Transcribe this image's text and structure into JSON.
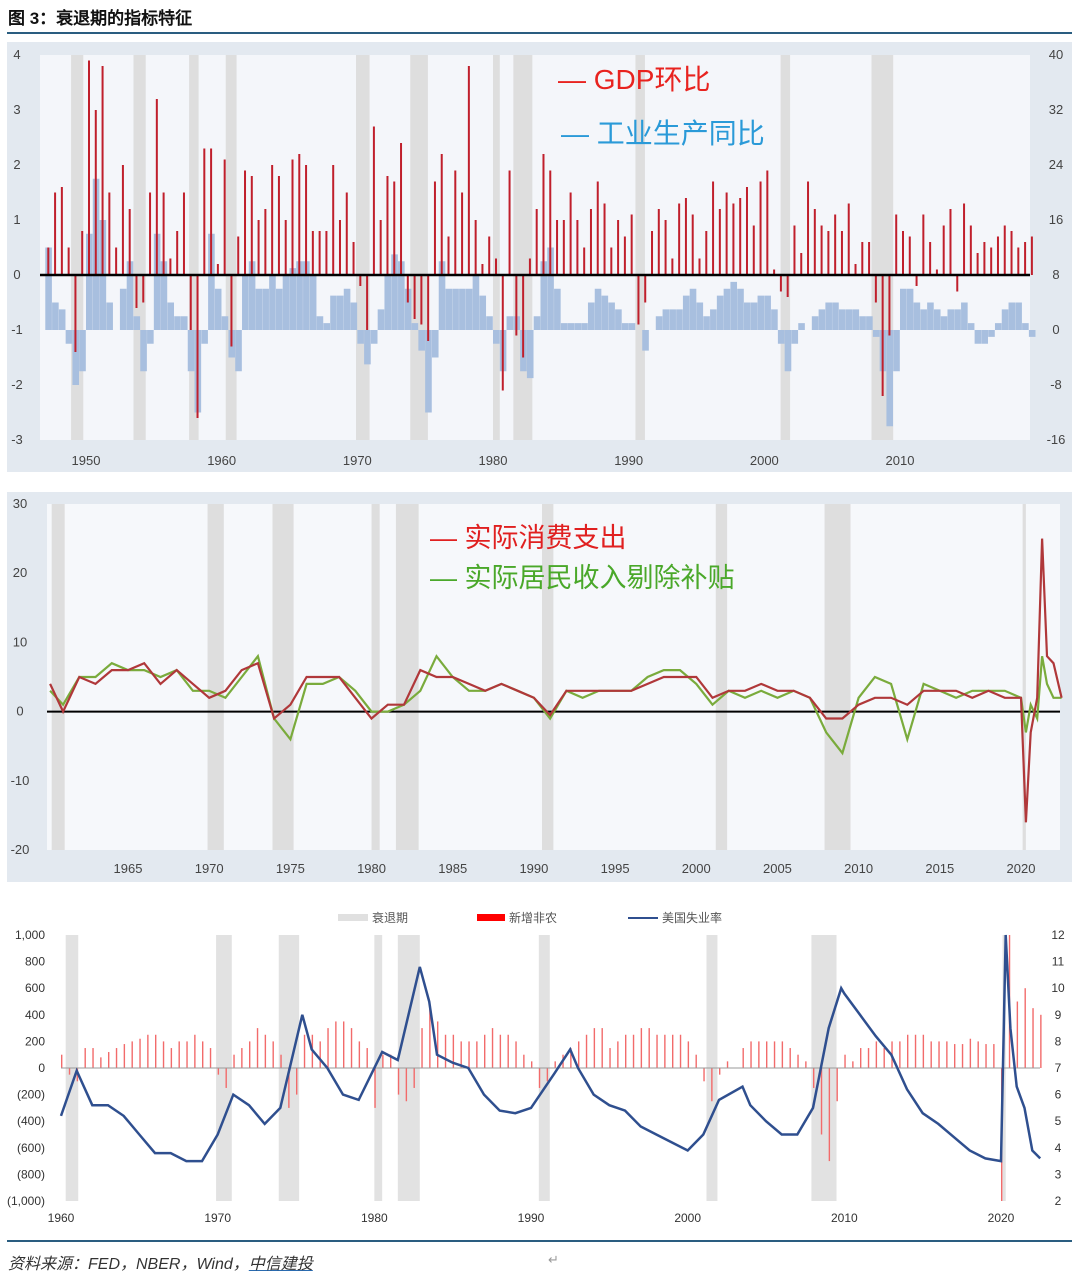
{
  "title": "图 3：衰退期的指标特征",
  "source": {
    "prefix": "资料来源：FED，NBER，Wind，",
    "suffix": "中信建投"
  },
  "recessions": [
    [
      1948.9,
      1949.8
    ],
    [
      1953.5,
      1954.4
    ],
    [
      1957.6,
      1958.3
    ],
    [
      1960.3,
      1961.1
    ],
    [
      1969.9,
      1970.9
    ],
    [
      1973.9,
      1975.2
    ],
    [
      1980.0,
      1980.5
    ],
    [
      1981.5,
      1982.9
    ],
    [
      1990.5,
      1991.2
    ],
    [
      2001.2,
      2001.9
    ],
    [
      2007.9,
      2009.5
    ],
    [
      2020.1,
      2020.3
    ]
  ],
  "chart_data": [
    {
      "type": "bar",
      "title": "",
      "legend": [
        "— GDP环比",
        "— 工业生产同比"
      ],
      "legend_colors": [
        "#e8231f",
        "#2a9ad8"
      ],
      "x_ticks": [
        "1950",
        "1960",
        "1970",
        "1980",
        "1990",
        "2000",
        "2010"
      ],
      "ylim_left": [
        -3,
        4
      ],
      "yticks_left": [
        "4",
        "3",
        "2",
        "1",
        "0",
        "-1",
        "-2",
        "-3"
      ],
      "ylim_right": [
        -16,
        40
      ],
      "yticks_right": [
        "40",
        "32",
        "24",
        "16",
        "8",
        "0",
        "-8",
        "-16"
      ],
      "x_start": 1947,
      "x_step": 0.5,
      "series": [
        {
          "name": "GDP环比",
          "axis": "left",
          "color": "#c01f2c",
          "values": [
            0.5,
            1.5,
            1.6,
            0.5,
            -1.4,
            0.8,
            3.9,
            3.0,
            3.8,
            1.5,
            0.5,
            2.0,
            1.2,
            -0.6,
            -0.5,
            1.5,
            3.2,
            1.5,
            0.3,
            0.8,
            1.5,
            -1.0,
            -2.6,
            2.3,
            2.3,
            0.2,
            2.1,
            -1.3,
            0.7,
            1.9,
            1.8,
            1.0,
            1.2,
            2.0,
            1.8,
            1.0,
            2.1,
            2.2,
            2.0,
            0.8,
            0.8,
            0.8,
            2.0,
            1.0,
            1.5,
            0.6,
            -0.2,
            -1.0,
            2.7,
            1.0,
            1.8,
            1.7,
            2.4,
            -0.5,
            -0.8,
            -0.9,
            -1.2,
            1.7,
            2.2,
            0.7,
            1.9,
            1.5,
            3.8,
            1.0,
            0.2,
            0.7,
            0.3,
            -2.1,
            1.9,
            -1.1,
            -1.5,
            0.3,
            1.2,
            2.2,
            1.9,
            1.0,
            1.0,
            1.5,
            1.0,
            0.5,
            1.2,
            1.7,
            1.3,
            0.5,
            1.0,
            0.7,
            1.1,
            -0.9,
            -0.5,
            0.8,
            1.2,
            1.0,
            0.3,
            1.3,
            1.4,
            1.1,
            0.3,
            0.8,
            1.7,
            1.2,
            1.5,
            1.3,
            1.4,
            1.6,
            0.9,
            1.7,
            1.9,
            0.1,
            -0.3,
            -0.4,
            0.9,
            0.4,
            1.7,
            1.2,
            0.9,
            0.8,
            1.1,
            0.8,
            1.3,
            0.2,
            0.6,
            0.6,
            -0.5,
            -2.2,
            -1.1,
            1.1,
            0.8,
            0.7,
            -0.2,
            1.1,
            0.6,
            0.1,
            0.9,
            1.2,
            -0.3,
            1.3,
            0.9,
            0.4,
            0.6,
            0.5,
            0.7,
            0.9,
            0.8,
            0.5,
            0.6,
            0.7
          ]
        },
        {
          "name": "工业生产同比",
          "axis": "right",
          "color": "#a8bfdf",
          "values": [
            12,
            4,
            3,
            -2,
            -8,
            -6,
            14,
            22,
            16,
            4,
            0,
            6,
            10,
            2,
            -6,
            -2,
            14,
            10,
            4,
            2,
            2,
            -6,
            -12,
            -2,
            14,
            6,
            2,
            -4,
            -6,
            8,
            10,
            6,
            6,
            8,
            6,
            8,
            9,
            10,
            10,
            8,
            2,
            1,
            5,
            5,
            6,
            4,
            -2,
            -5,
            -2,
            3,
            8,
            11,
            10,
            6,
            1,
            -3,
            -12,
            -4,
            10,
            6,
            6,
            6,
            6,
            8,
            5,
            2,
            -2,
            -6,
            2,
            2,
            -6,
            -7,
            2,
            10,
            12,
            6,
            1,
            1,
            1,
            1,
            4,
            6,
            5,
            4,
            3,
            1,
            1,
            0,
            -3,
            0,
            2,
            3,
            3,
            3,
            5,
            6,
            4,
            2,
            3,
            5,
            6,
            7,
            6,
            4,
            4,
            5,
            5,
            3,
            -2,
            -6,
            -2,
            1,
            0,
            2,
            3,
            4,
            4,
            3,
            3,
            3,
            2,
            2,
            -1,
            -6,
            -14,
            -6,
            6,
            6,
            4,
            3,
            4,
            3,
            2,
            3,
            3,
            4,
            1,
            -2,
            -2,
            -1,
            1,
            3,
            4,
            4,
            1,
            -1
          ]
        }
      ]
    },
    {
      "type": "line",
      "legend": [
        "— 实际消费支出",
        "— 实际居民收入剔除补贴"
      ],
      "legend_colors": [
        "#e02020",
        "#4aa82a"
      ],
      "x_ticks": [
        "1965",
        "1970",
        "1975",
        "1980",
        "1985",
        "1990",
        "1995",
        "2000",
        "2005",
        "2010",
        "2015",
        "2020"
      ],
      "ylim": [
        -20,
        30
      ],
      "yticks": [
        "30",
        "20",
        "10",
        "0",
        "-10",
        "-20"
      ],
      "series": [
        {
          "name": "实际消费支出",
          "color": "#b0383a",
          "x": [
            1960.2,
            1961,
            1962,
            1963,
            1964,
            1965,
            1966,
            1967,
            1968,
            1969,
            1970,
            1971,
            1972,
            1973,
            1974,
            1975,
            1976,
            1977,
            1978,
            1979,
            1980,
            1981,
            1982,
            1983,
            1984,
            1985,
            1986,
            1987,
            1988,
            1989,
            1990,
            1991,
            1992,
            1993,
            1994,
            1995,
            1996,
            1997,
            1998,
            1999,
            2000,
            2001,
            2002,
            2003,
            2004,
            2005,
            2006,
            2007,
            2008,
            2009,
            2010,
            2011,
            2012,
            2013,
            2014,
            2015,
            2016,
            2017,
            2018,
            2019,
            2020,
            2020.3,
            2020.6,
            2021,
            2021.3,
            2021.6,
            2022,
            2022.5
          ],
          "y": [
            4,
            0,
            5,
            4,
            6,
            6,
            7,
            4,
            6,
            4,
            2,
            3,
            6,
            7,
            -1,
            1,
            5,
            5,
            5,
            2,
            -1,
            1,
            1,
            6,
            5,
            5,
            4,
            3,
            4,
            3,
            2,
            -0.5,
            3,
            3,
            3,
            3,
            3,
            4,
            5,
            5,
            5,
            2,
            3,
            3,
            4,
            3,
            3,
            2,
            -1,
            -1,
            1,
            2,
            2,
            1,
            3,
            3,
            3,
            2,
            3,
            2,
            2,
            -16,
            -3,
            2,
            25,
            8,
            7,
            2
          ]
        },
        {
          "name": "实际居民收入剔除补贴",
          "color": "#7aab3c",
          "x": [
            1960.2,
            1961,
            1962,
            1963,
            1964,
            1965,
            1966,
            1967,
            1968,
            1969,
            1970,
            1971,
            1972,
            1973,
            1974,
            1975,
            1976,
            1977,
            1978,
            1979,
            1980,
            1981,
            1982,
            1983,
            1984,
            1985,
            1986,
            1987,
            1988,
            1989,
            1990,
            1991,
            1992,
            1993,
            1994,
            1995,
            1996,
            1997,
            1998,
            1999,
            2000,
            2001,
            2002,
            2003,
            2004,
            2005,
            2006,
            2007,
            2008,
            2009,
            2010,
            2011,
            2012,
            2013,
            2014,
            2015,
            2016,
            2017,
            2018,
            2019,
            2020,
            2020.3,
            2020.6,
            2021,
            2021.3,
            2021.6,
            2022,
            2022.5
          ],
          "y": [
            3,
            1,
            5,
            5,
            7,
            6,
            6,
            5,
            6,
            3,
            3,
            2,
            5,
            8,
            -1,
            -4,
            4,
            4,
            5,
            3,
            0,
            0,
            1,
            3,
            8,
            5,
            3,
            3,
            4,
            3,
            2,
            -1,
            3,
            2,
            3,
            3,
            3,
            5,
            6,
            6,
            4,
            1,
            3,
            2,
            3,
            2,
            3,
            2,
            -3,
            -6,
            2,
            5,
            4,
            -4,
            4,
            3,
            2,
            3,
            3,
            3,
            2,
            -3,
            1,
            -1,
            8,
            4,
            2,
            2
          ]
        }
      ]
    },
    {
      "type": "bar+line",
      "legend": [
        "衰退期",
        "新增非农",
        "美国失业率"
      ],
      "legend_colors": [
        "#e0e0e0",
        "#ff0000",
        "#2f4f8f"
      ],
      "x_ticks": [
        "1960",
        "1970",
        "1980",
        "1990",
        "2000",
        "2010",
        "2020"
      ],
      "ylim_left": [
        -1000,
        1000
      ],
      "yticks_left": [
        "1,000",
        "800",
        "600",
        "400",
        "200",
        "0",
        "(200)",
        "(400)",
        "(600)",
        "(800)",
        "(1,000)"
      ],
      "ylim_right": [
        2,
        12
      ],
      "yticks_right": [
        "12",
        "11",
        "10",
        "9",
        "8",
        "7",
        "6",
        "5",
        "4",
        "3",
        "2"
      ],
      "payrolls": {
        "x_start": 1960,
        "x_step": 0.5,
        "values": [
          100,
          -50,
          -100,
          150,
          150,
          80,
          120,
          150,
          180,
          200,
          220,
          250,
          250,
          200,
          150,
          200,
          200,
          250,
          200,
          150,
          -50,
          -150,
          100,
          150,
          200,
          300,
          250,
          200,
          100,
          -300,
          -200,
          250,
          250,
          200,
          300,
          350,
          350,
          300,
          200,
          150,
          -300,
          100,
          100,
          -200,
          -250,
          -150,
          300,
          450,
          350,
          250,
          250,
          200,
          200,
          200,
          250,
          300,
          250,
          250,
          200,
          100,
          50,
          -150,
          -100,
          50,
          100,
          150,
          200,
          250,
          300,
          300,
          150,
          200,
          250,
          250,
          300,
          300,
          250,
          250,
          250,
          250,
          200,
          100,
          -100,
          -250,
          -50,
          50,
          0,
          150,
          200,
          200,
          200,
          200,
          200,
          150,
          100,
          50,
          -150,
          -500,
          -700,
          -250,
          100,
          50,
          150,
          150,
          200,
          150,
          200,
          200,
          250,
          250,
          250,
          200,
          200,
          200,
          180,
          180,
          220,
          200,
          180,
          180,
          -1000,
          1000,
          500,
          600,
          450,
          400
        ]
      },
      "unemployment": {
        "x": [
          1960,
          1961,
          1962,
          1963,
          1964,
          1965,
          1966,
          1967,
          1968,
          1969,
          1970,
          1971,
          1972,
          1973,
          1974,
          1975.4,
          1976,
          1977,
          1978,
          1979,
          1980.5,
          1981.5,
          1982.9,
          1983.5,
          1984,
          1985,
          1986,
          1987,
          1988,
          1989,
          1990,
          1991.5,
          1992.5,
          1993,
          1994,
          1995,
          1996,
          1997,
          1998,
          1999,
          2000,
          2001,
          2002,
          2003.5,
          2004,
          2005,
          2006,
          2007,
          2008,
          2009,
          2009.8,
          2010,
          2011,
          2012,
          2013,
          2014,
          2015,
          2016,
          2017,
          2018,
          2019,
          2020,
          2020.3,
          2020.6,
          2021,
          2021.5,
          2022,
          2022.5
        ],
        "y": [
          5.2,
          6.9,
          5.6,
          5.6,
          5.2,
          4.5,
          3.8,
          3.8,
          3.5,
          3.5,
          4.5,
          6,
          5.6,
          4.9,
          5.5,
          9,
          7.7,
          7,
          6,
          5.8,
          7.6,
          7.3,
          10.8,
          9.5,
          7.5,
          7.2,
          7,
          6,
          5.4,
          5.3,
          5.5,
          6.8,
          7.7,
          7,
          6,
          5.6,
          5.4,
          4.8,
          4.5,
          4.2,
          3.9,
          4.5,
          5.8,
          6.3,
          5.6,
          5,
          4.5,
          4.5,
          5.5,
          8.5,
          10,
          9.8,
          9,
          8.2,
          7.5,
          6.2,
          5.3,
          4.9,
          4.4,
          3.9,
          3.6,
          3.5,
          14.7,
          8.5,
          6.3,
          5.5,
          3.9,
          3.6
        ]
      }
    }
  ]
}
